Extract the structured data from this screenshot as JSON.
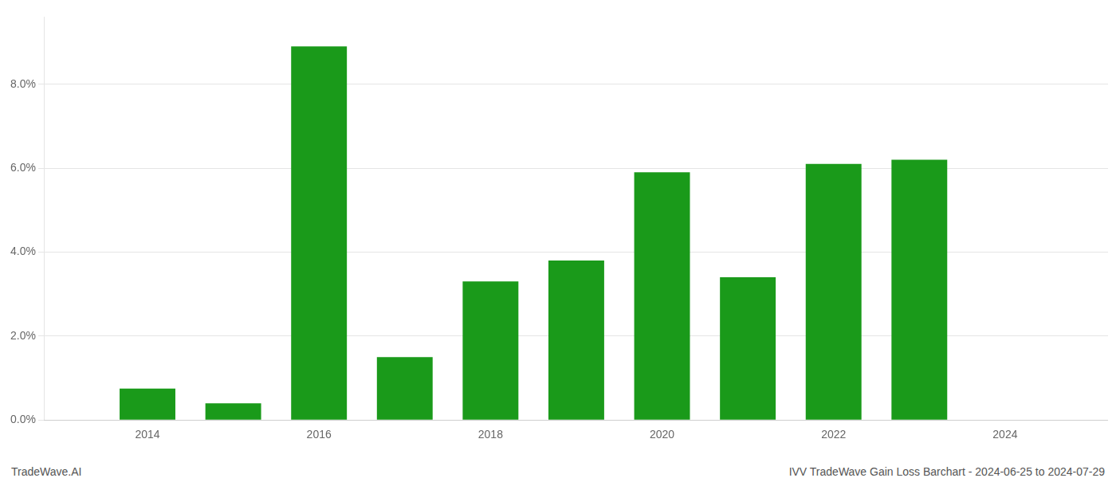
{
  "chart_data": {
    "type": "bar",
    "title": "IVV TradeWave Gain Loss Barchart - 2024-06-25 to 2024-07-29",
    "annotations": [
      "TradeWave.AI"
    ],
    "x": [
      2014,
      2015,
      2016,
      2017,
      2018,
      2019,
      2020,
      2021,
      2022,
      2023,
      2024
    ],
    "values": [
      0.0075,
      0.004,
      0.089,
      0.015,
      0.033,
      0.038,
      0.059,
      0.034,
      0.061,
      0.062,
      0.0
    ],
    "color": "#1a9a1a",
    "xlim": [
      2012.8,
      2025.2
    ],
    "xticks": [
      2014,
      2016,
      2018,
      2020,
      2022,
      2024
    ],
    "ylim": [
      0,
      0.096
    ],
    "yticks": [
      {
        "value": 0.0,
        "label": "0.0%"
      },
      {
        "value": 0.02,
        "label": "2.0%"
      },
      {
        "value": 0.04,
        "label": "4.0%"
      },
      {
        "value": 0.06,
        "label": "6.0%"
      },
      {
        "value": 0.08,
        "label": "8.0%"
      }
    ],
    "grid": true
  }
}
